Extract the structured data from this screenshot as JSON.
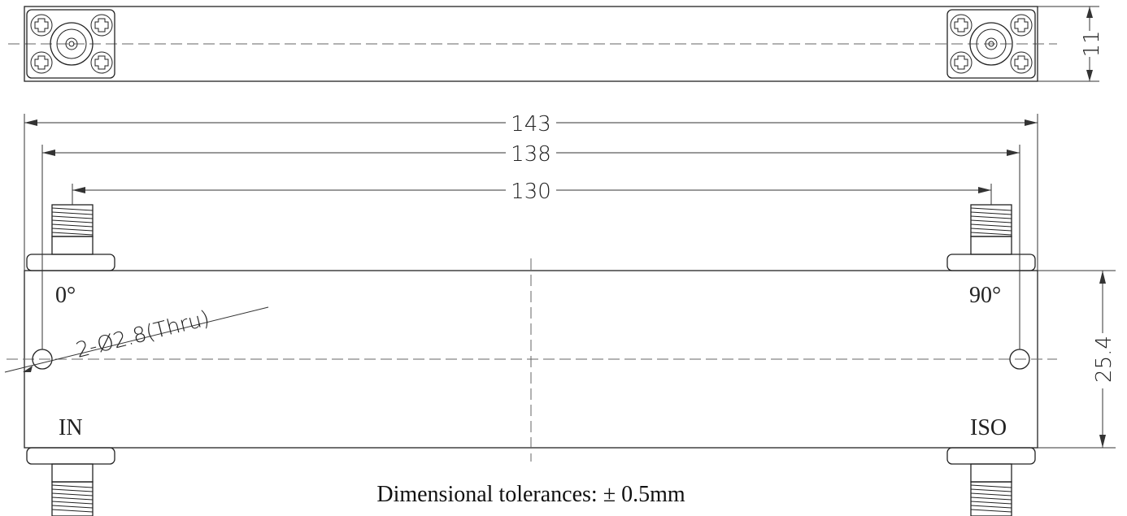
{
  "dimensions": {
    "overall_length": "143",
    "hole_spacing": "138",
    "connector_spacing": "130",
    "body_height": "25.4",
    "top_view_height": "11",
    "hole_callout": "2-Ø2.8(Thru)"
  },
  "port_labels": {
    "top_left": "0°",
    "top_right": "90°",
    "bottom_left": "IN",
    "bottom_right": "ISO"
  },
  "note": "Dimensional tolerances: ± 0.5mm"
}
